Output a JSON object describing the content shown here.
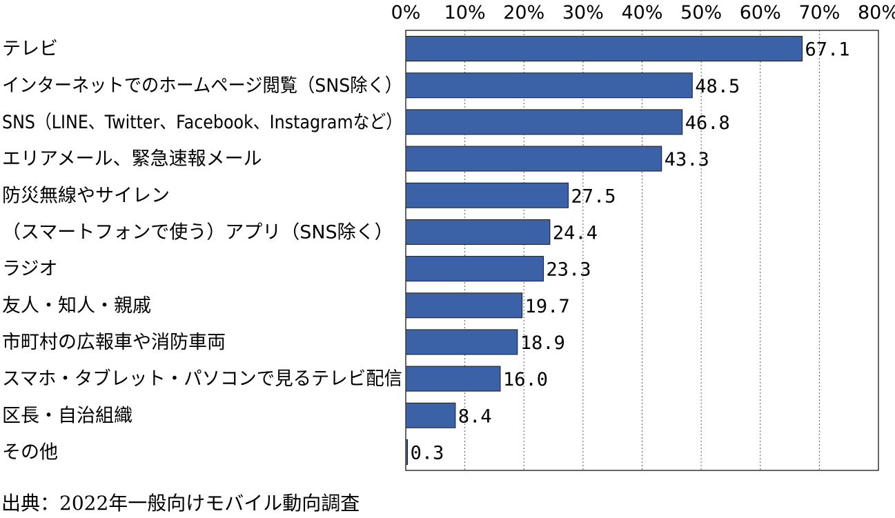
{
  "chart_data": {
    "type": "bar",
    "orientation": "horizontal",
    "categories": [
      "テレビ",
      "インターネットでのホームページ閲覧（SNS除く）",
      "SNS（LINE、Twitter、Facebook、Instagramなど）",
      "エリアメール、緊急速報メール",
      "防災無線やサイレン",
      "（スマートフォンで使う）アプリ（SNS除く）",
      "ラジオ",
      "友人・知人・親戚",
      "市町村の広報車や消防車両",
      "スマホ・タブレット・パソコンで見るテレビ配信",
      "区長・自治組織",
      "その他"
    ],
    "values": [
      67.1,
      48.5,
      46.8,
      43.3,
      27.5,
      24.4,
      23.3,
      19.7,
      18.9,
      16.0,
      8.4,
      0.3
    ],
    "value_labels": [
      "67.1",
      "48.5",
      "46.8",
      "43.3",
      "27.5",
      "24.4",
      "23.3",
      "19.7",
      "18.9",
      "16.0",
      "8.4",
      "0.3"
    ],
    "xlim": [
      0,
      80
    ],
    "xticks": [
      0,
      10,
      20,
      30,
      40,
      50,
      60,
      70,
      80
    ],
    "xtick_labels": [
      "0%",
      "10%",
      "20%",
      "30%",
      "40%",
      "50%",
      "60%",
      "70%",
      "80%"
    ],
    "axis_position": "top",
    "grid": "vertical dotted",
    "legend": "none",
    "bar_color": "#3b62a6",
    "bar_edge_color": "#1a1a1a"
  },
  "footer": {
    "source": "出典：2022年一般向けモバイル動向調査"
  }
}
